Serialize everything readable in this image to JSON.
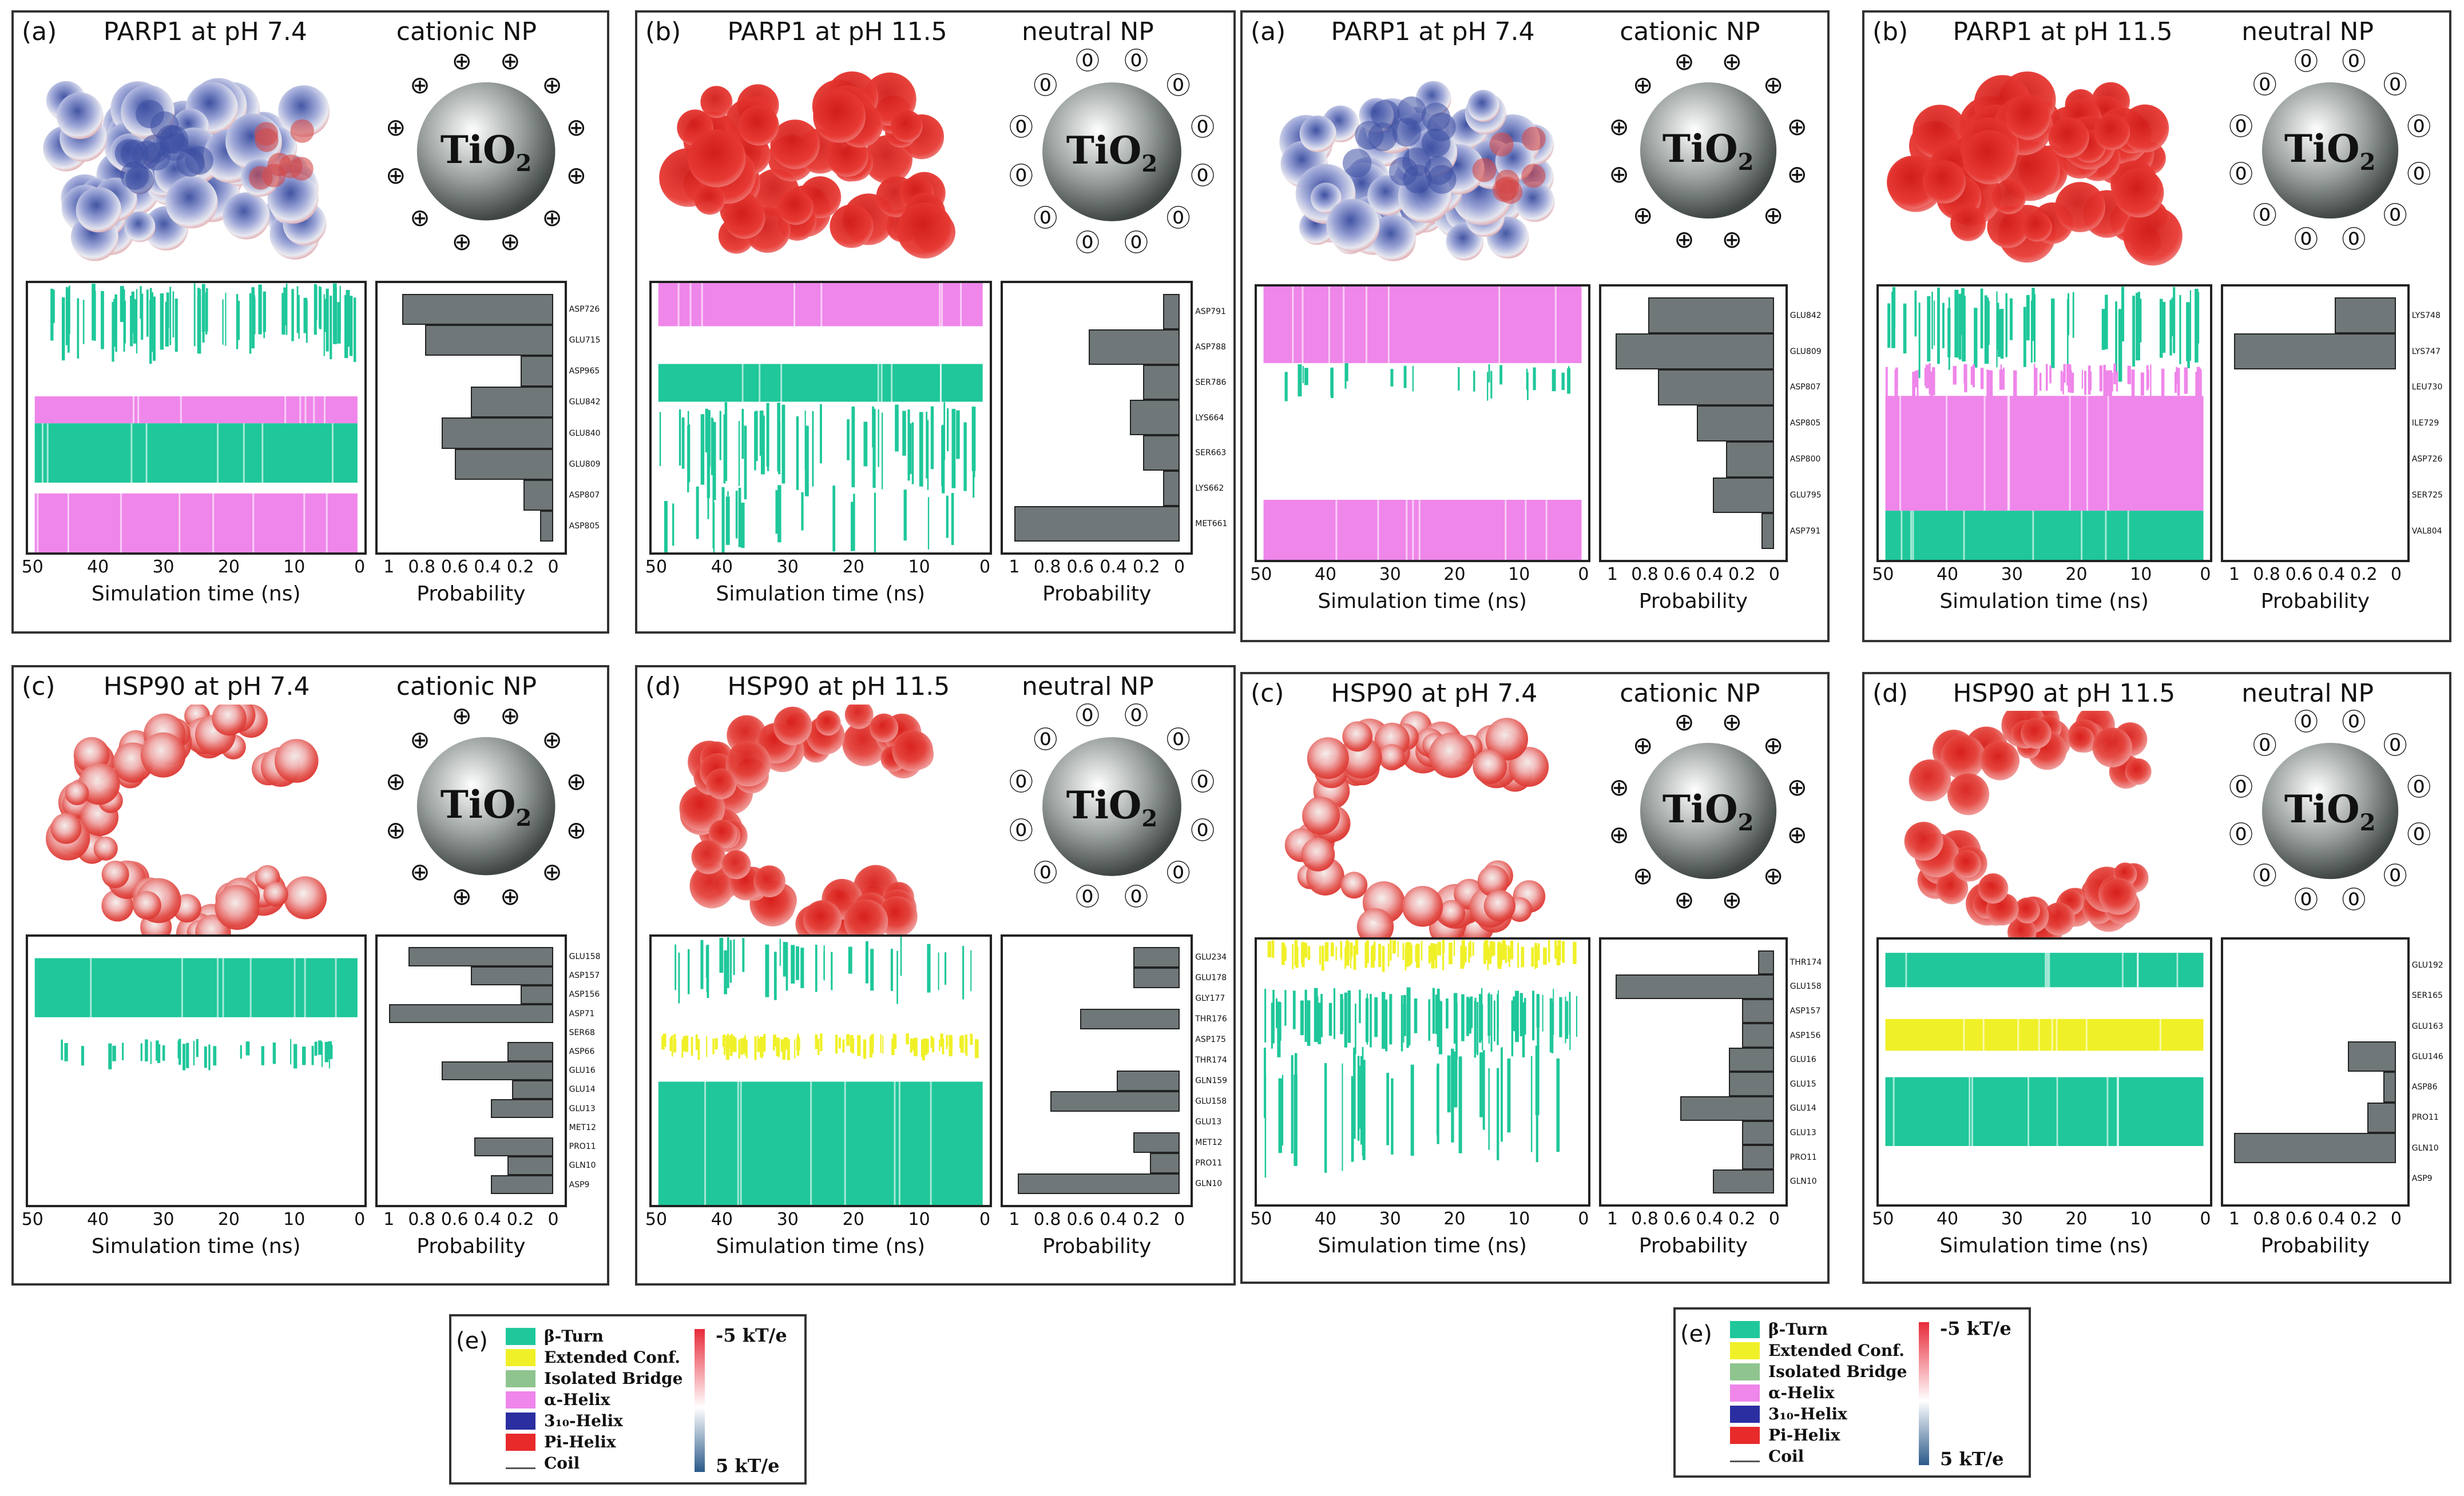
{
  "panels": [
    {
      "label": "(a)",
      "title": "PARP1 at pH 7.4",
      "np_label": "cationic NP",
      "np_text": "TiO2",
      "np_sub": "2",
      "charge": "⊕",
      "protein": "parp-mixed",
      "residues": [
        "ASP726",
        "GLU715",
        "ASP965",
        "GLU842",
        "GLU840",
        "GLU809",
        "ASP807",
        "ASP805"
      ],
      "probabilities": [
        0.92,
        0.78,
        0.2,
        0.5,
        0.68,
        0.6,
        0.18,
        0.08
      ],
      "bands": [
        {
          "y0": 0.0,
          "y1": 0.24,
          "type": "beta",
          "density": 0.7
        },
        {
          "y0": 0.42,
          "y1": 0.52,
          "type": "alpha",
          "density": 0.9
        },
        {
          "y0": 0.52,
          "y1": 0.74,
          "type": "beta",
          "density": 0.95
        },
        {
          "y0": 0.78,
          "y1": 1.0,
          "type": "alpha",
          "density": 0.9
        }
      ],
      "xticks": [
        "50",
        "40",
        "30",
        "20",
        "10",
        "0"
      ],
      "pticks": [
        "1",
        "0.8",
        "0.6",
        "0.4",
        "0.2",
        "0"
      ],
      "xlabel": "Simulation time (ns)",
      "plabel": "Probability"
    },
    {
      "label": "(b)",
      "title": "PARP1 at pH 11.5",
      "np_label": "neutral NP",
      "np_text": "TiO2",
      "np_sub": "2",
      "charge": "⓪",
      "protein": "parp-red",
      "residues": [
        "ASP791",
        "ASP788",
        "SER786",
        "LYS664",
        "SER663",
        "LYS662",
        "MET661"
      ],
      "probabilities": [
        0.1,
        0.55,
        0.22,
        0.3,
        0.22,
        0.1,
        1.0
      ],
      "bands": [
        {
          "y0": 0.0,
          "y1": 0.16,
          "type": "alpha",
          "density": 0.95
        },
        {
          "y0": 0.3,
          "y1": 0.44,
          "type": "beta",
          "density": 0.9
        },
        {
          "y0": 0.44,
          "y1": 0.74,
          "type": "beta",
          "density": 0.5
        },
        {
          "y0": 0.74,
          "y1": 1.0,
          "type": "beta",
          "density": 0.2
        }
      ],
      "xticks": [
        "50",
        "40",
        "30",
        "20",
        "10",
        "0"
      ],
      "pticks": [
        "1",
        "0.8",
        "0.6",
        "0.4",
        "0.2",
        "0"
      ],
      "xlabel": "Simulation time (ns)",
      "plabel": "Probability"
    },
    {
      "label": "(a)",
      "title": "PARP1 at pH 7.4",
      "np_label": "cationic NP",
      "np_text": "TiO2",
      "np_sub": "2",
      "charge": "⊕",
      "protein": "parp-mixed",
      "residues": [
        "GLU842",
        "GLU809",
        "ASP807",
        "ASP805",
        "ASP800",
        "GLU795",
        "ASP791"
      ],
      "probabilities": [
        0.78,
        0.98,
        0.72,
        0.48,
        0.3,
        0.38,
        0.08
      ],
      "bands": [
        {
          "y0": 0.0,
          "y1": 0.28,
          "type": "alpha",
          "density": 0.95
        },
        {
          "y0": 0.28,
          "y1": 0.4,
          "type": "beta",
          "density": 0.2
        },
        {
          "y0": 0.78,
          "y1": 1.0,
          "type": "alpha",
          "density": 0.9
        }
      ],
      "xticks": [
        "50",
        "40",
        "30",
        "20",
        "10",
        "0"
      ],
      "pticks": [
        "1",
        "0.8",
        "0.6",
        "0.4",
        "0.2",
        "0"
      ],
      "xlabel": "Simulation time (ns)",
      "plabel": "Probability"
    },
    {
      "label": "(b)",
      "title": "PARP1 at pH 11.5",
      "np_label": "neutral NP",
      "np_text": "TiO2",
      "np_sub": "2",
      "charge": "⓪",
      "protein": "parp-red",
      "residues": [
        "LYS748",
        "LYS747",
        "LEU730",
        "ILE729",
        "ASP726",
        "SER725",
        "VAL804"
      ],
      "probabilities": [
        0.38,
        1.0,
        0.0,
        0.0,
        0.0,
        0.0,
        0.0
      ],
      "bands": [
        {
          "y0": 0.0,
          "y1": 0.28,
          "type": "beta",
          "density": 0.5
        },
        {
          "y0": 0.28,
          "y1": 0.4,
          "type": "alpha",
          "density": 0.6
        },
        {
          "y0": 0.4,
          "y1": 0.82,
          "type": "alpha",
          "density": 0.95
        },
        {
          "y0": 0.82,
          "y1": 1.0,
          "type": "beta",
          "density": 0.9
        }
      ],
      "xticks": [
        "50",
        "40",
        "30",
        "20",
        "10",
        "0"
      ],
      "pticks": [
        "1",
        "0.8",
        "0.6",
        "0.4",
        "0.2",
        "0"
      ],
      "xlabel": "Simulation time (ns)",
      "plabel": "Probability"
    },
    {
      "label": "(c)",
      "title": "HSP90 at pH 7.4",
      "np_label": "cationic NP",
      "np_text": "TiO2",
      "np_sub": "2",
      "charge": "⊕",
      "protein": "hsp-mixed",
      "residues": [
        "GLU158",
        "ASP157",
        "ASP156",
        "ASP71",
        "SER68",
        "ASP66",
        "GLU16",
        "GLU14",
        "GLU13",
        "MET12",
        "PRO11",
        "GLN10",
        "ASP9"
      ],
      "probabilities": [
        0.88,
        0.5,
        0.2,
        1.0,
        0.0,
        0.28,
        0.68,
        0.25,
        0.38,
        0.0,
        0.48,
        0.28,
        0.38
      ],
      "bands": [
        {
          "y0": 0.08,
          "y1": 0.3,
          "type": "beta",
          "density": 0.95
        },
        {
          "y0": 0.38,
          "y1": 0.48,
          "type": "beta",
          "density": 0.3
        }
      ],
      "xticks": [
        "50",
        "40",
        "30",
        "20",
        "10",
        "0"
      ],
      "pticks": [
        "1",
        "0.8",
        "0.6",
        "0.4",
        "0.2",
        "0"
      ],
      "xlabel": "Simulation time (ns)",
      "plabel": "Probability"
    },
    {
      "label": "(d)",
      "title": "HSP90 at pH 11.5",
      "np_label": "neutral NP",
      "np_text": "TiO2",
      "np_sub": "2",
      "charge": "⓪",
      "protein": "hsp-red",
      "residues": [
        "GLU234",
        "GLU178",
        "GLY177",
        "THR176",
        "ASP175",
        "THR174",
        "GLN159",
        "GLU158",
        "GLU13",
        "MET12",
        "PRO11",
        "GLN10"
      ],
      "probabilities": [
        0.28,
        0.28,
        0.0,
        0.6,
        0.0,
        0.0,
        0.38,
        0.78,
        0.0,
        0.28,
        0.18,
        0.98
      ],
      "bands": [
        {
          "y0": 0.0,
          "y1": 0.2,
          "type": "beta",
          "density": 0.3
        },
        {
          "y0": 0.36,
          "y1": 0.44,
          "type": "ext",
          "density": 0.85
        },
        {
          "y0": 0.54,
          "y1": 1.0,
          "type": "beta",
          "density": 0.95
        }
      ],
      "xticks": [
        "50",
        "40",
        "30",
        "20",
        "10",
        "0"
      ],
      "pticks": [
        "1",
        "0.8",
        "0.6",
        "0.4",
        "0.2",
        "0"
      ],
      "xlabel": "Simulation time (ns)",
      "plabel": "Probability"
    },
    {
      "label": "(c)",
      "title": "HSP90 at pH 7.4",
      "np_label": "cationic NP",
      "np_text": "TiO2",
      "np_sub": "2",
      "charge": "⊕",
      "protein": "hsp-mixed",
      "residues": [
        "THR174",
        "GLU158",
        "ASP157",
        "ASP156",
        "GLU16",
        "GLU15",
        "GLU14",
        "GLU13",
        "PRO11",
        "GLN10"
      ],
      "probabilities": [
        0.1,
        0.98,
        0.2,
        0.2,
        0.28,
        0.28,
        0.58,
        0.2,
        0.2,
        0.38
      ],
      "bands": [
        {
          "y0": 0.0,
          "y1": 0.1,
          "type": "ext",
          "density": 0.85
        },
        {
          "y0": 0.18,
          "y1": 0.4,
          "type": "beta",
          "density": 0.7
        },
        {
          "y0": 0.4,
          "y1": 0.82,
          "type": "beta",
          "density": 0.3
        }
      ],
      "xticks": [
        "50",
        "40",
        "30",
        "20",
        "10",
        "0"
      ],
      "pticks": [
        "1",
        "0.8",
        "0.6",
        "0.4",
        "0.2",
        "0"
      ],
      "xlabel": "Simulation time (ns)",
      "plabel": "Probability"
    },
    {
      "label": "(d)",
      "title": "HSP90 at pH 11.5",
      "np_label": "neutral NP",
      "np_text": "TiO2",
      "np_sub": "2",
      "charge": "⓪",
      "protein": "hsp-red",
      "residues": [
        "GLU192",
        "SER165",
        "GLU163",
        "GLU146",
        "ASP86",
        "PRO11",
        "GLN10",
        "ASP9"
      ],
      "probabilities": [
        0.0,
        0.0,
        0.0,
        0.3,
        0.08,
        0.18,
        1.0,
        0.0
      ],
      "bands": [
        {
          "y0": 0.05,
          "y1": 0.18,
          "type": "beta",
          "density": 0.95
        },
        {
          "y0": 0.3,
          "y1": 0.42,
          "type": "ext",
          "density": 0.95
        },
        {
          "y0": 0.52,
          "y1": 0.78,
          "type": "beta",
          "density": 0.9
        }
      ],
      "xticks": [
        "50",
        "40",
        "30",
        "20",
        "10",
        "0"
      ],
      "pticks": [
        "1",
        "0.8",
        "0.6",
        "0.4",
        "0.2",
        "0"
      ],
      "xlabel": "Simulation time (ns)",
      "plabel": "Probability"
    }
  ],
  "legends": [
    {
      "label": "(e)",
      "items": [
        {
          "name": "β-Turn",
          "color": "#1fc79a"
        },
        {
          "name": "Extended Conf.",
          "color": "#f0f028"
        },
        {
          "name": "Isolated Bridge",
          "color": "#8fc48f"
        },
        {
          "name": "α-Helix",
          "color": "#ef86ea"
        },
        {
          "name": "3₁₀-Helix",
          "color": "#2a2ea0"
        },
        {
          "name": "Pi-Helix",
          "color": "#e82a2a"
        },
        {
          "name": "Coil",
          "color": "#555555"
        }
      ],
      "scale_top": "-5 kT/e",
      "scale_bottom": "5 kT/e"
    },
    {
      "label": "(e)",
      "items": [
        {
          "name": "β-Turn",
          "color": "#1fc79a"
        },
        {
          "name": "Extended Conf.",
          "color": "#f0f028"
        },
        {
          "name": "Isolated Bridge",
          "color": "#8fc48f"
        },
        {
          "name": "α-Helix",
          "color": "#ef86ea"
        },
        {
          "name": "3₁₀-Helix",
          "color": "#2a2ea0"
        },
        {
          "name": "Pi-Helix",
          "color": "#e82a2a"
        },
        {
          "name": "Coil",
          "color": "#555555"
        }
      ],
      "scale_top": "-5 kT/e",
      "scale_bottom": "5 kT/e"
    }
  ],
  "colors": {
    "beta": "#1fc79a",
    "alpha": "#ef86ea",
    "ext": "#f0f028",
    "bar": "#6f7778",
    "red": "#e0221f",
    "blue": "#4a5aa8"
  }
}
